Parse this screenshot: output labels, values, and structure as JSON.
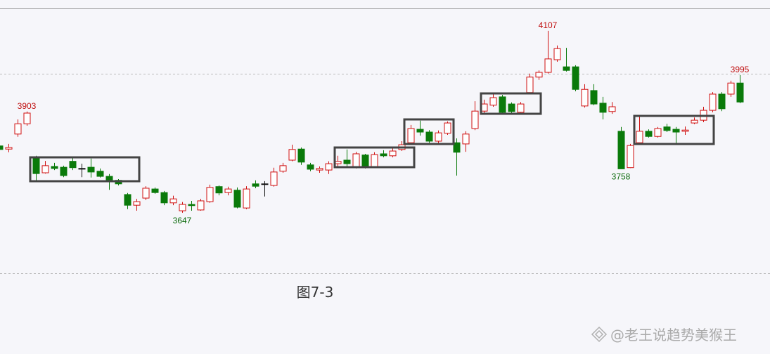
{
  "chart_data": {
    "type": "candlestick",
    "open": [
      3816,
      3808,
      3846,
      3872,
      3785,
      3748,
      3764,
      3762,
      3777,
      3759,
      3762,
      3752,
      3739,
      3729,
      3693,
      3666,
      3684,
      3707,
      3698,
      3672,
      3652,
      3668,
      3654,
      3675,
      3713,
      3698,
      3704,
      3659,
      3720,
      3720,
      3716,
      3752,
      3780,
      3808,
      3768,
      3755,
      3755,
      3771,
      3780,
      3764,
      3793,
      3764,
      3796,
      3791,
      3807,
      3824,
      3858,
      3851,
      3828,
      3848,
      3824,
      3821,
      3860,
      3904,
      3919,
      3940,
      3922,
      3901,
      3951,
      3990,
      4002,
      4034,
      4016,
      4016,
      3917,
      3956,
      3924,
      3903,
      3853,
      3761,
      3824,
      3853,
      3840,
      3864,
      3858,
      3853,
      3874,
      3881,
      3906,
      3947,
      3947,
      3975
    ],
    "high": [
      3819,
      3821,
      3883,
      3903,
      3791,
      3778,
      3773,
      3766,
      3787,
      3771,
      3784,
      3759,
      3745,
      3732,
      3697,
      3682,
      3714,
      3711,
      3702,
      3690,
      3674,
      3677,
      3682,
      3718,
      3716,
      3713,
      3711,
      3714,
      3729,
      3727,
      3761,
      3773,
      3819,
      3812,
      3773,
      3764,
      3777,
      3791,
      3807,
      3801,
      3796,
      3800,
      3805,
      3810,
      3828,
      3869,
      3880,
      3856,
      3855,
      3878,
      3835,
      3853,
      3929,
      3933,
      3947,
      3945,
      3926,
      3927,
      3999,
      4007,
      4107,
      4070,
      4064,
      4020,
      3972,
      3972,
      3940,
      3927,
      3864,
      3821,
      3890,
      3858,
      3864,
      3872,
      3864,
      3865,
      3888,
      3915,
      3952,
      3952,
      3981,
      3995
    ],
    "low": [
      3803,
      3800,
      3839,
      3867,
      3729,
      3746,
      3755,
      3737,
      3755,
      3737,
      3736,
      3736,
      3705,
      3716,
      3656,
      3652,
      3679,
      3695,
      3666,
      3666,
      3647,
      3652,
      3652,
      3672,
      3691,
      3691,
      3658,
      3656,
      3709,
      3688,
      3713,
      3748,
      3777,
      3768,
      3752,
      3748,
      3745,
      3762,
      3764,
      3759,
      3759,
      3761,
      3787,
      3787,
      3803,
      3821,
      3842,
      3824,
      3823,
      3844,
      3741,
      3801,
      3856,
      3899,
      3915,
      3896,
      3897,
      3896,
      3949,
      3983,
      3999,
      4029,
      4004,
      3954,
      3913,
      3919,
      3883,
      3897,
      3758,
      3760,
      3821,
      3837,
      3837,
      3851,
      3819,
      3844,
      3871,
      3876,
      3901,
      3904,
      3940,
      3924
    ],
    "close": [
      3807,
      3812,
      3872,
      3899,
      3746,
      3766,
      3759,
      3741,
      3761,
      3759,
      3750,
      3739,
      3727,
      3720,
      3666,
      3675,
      3709,
      3698,
      3672,
      3682,
      3668,
      3665,
      3677,
      3711,
      3697,
      3707,
      3661,
      3707,
      3714,
      3720,
      3750,
      3766,
      3807,
      3775,
      3757,
      3759,
      3771,
      3777,
      3771,
      3796,
      3764,
      3794,
      3791,
      3803,
      3819,
      3860,
      3851,
      3828,
      3849,
      3874,
      3800,
      3846,
      3904,
      3922,
      3938,
      3901,
      3903,
      3922,
      3990,
      4002,
      4036,
      4062,
      4007,
      3959,
      3959,
      3922,
      3901,
      3915,
      3758,
      3817,
      3853,
      3840,
      3860,
      3855,
      3851,
      3856,
      3881,
      3906,
      3947,
      3910,
      3975,
      3927
    ],
    "up_color": "#d01010",
    "down_color": "#0a7a0a",
    "flat_color": "#111111",
    "ylim": [
      3494,
      4185
    ],
    "caption": "图7-3",
    "watermark": "@老王说趋势美猴王"
  }
}
